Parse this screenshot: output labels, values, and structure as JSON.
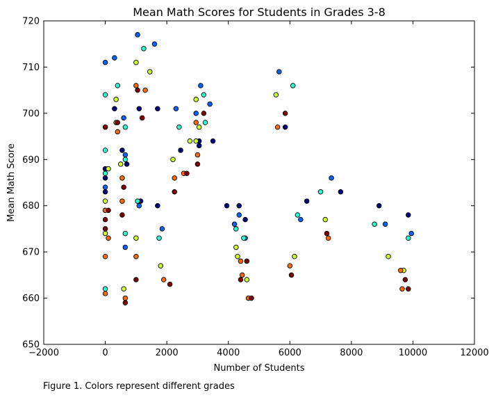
{
  "chart_data": {
    "type": "scatter",
    "title": "Mean Math Scores for Students in Grades 3-8",
    "xlabel": "Number of Students",
    "ylabel": "Mean Math Score",
    "xlim": [
      -2000,
      12000
    ],
    "ylim": [
      650,
      720
    ],
    "xticks": [
      -2000,
      0,
      2000,
      4000,
      6000,
      8000,
      10000,
      12000
    ],
    "yticks": [
      650,
      660,
      670,
      680,
      690,
      700,
      710,
      720
    ],
    "grid": false,
    "legend": "none",
    "marker_edge_color": "#000000",
    "series": [
      {
        "color": "#00007f",
        "points": [
          [
            300,
            701
          ],
          [
            550,
            692
          ],
          [
            0,
            686
          ],
          [
            700,
            689
          ],
          [
            1700,
            701
          ],
          [
            1100,
            701
          ],
          [
            2450,
            692
          ],
          [
            3050,
            693
          ],
          [
            3050,
            694
          ],
          [
            3500,
            694
          ],
          [
            1700,
            680
          ],
          [
            1150,
            681
          ],
          [
            0,
            683
          ],
          [
            3950,
            680
          ],
          [
            4350,
            680
          ],
          [
            4550,
            677
          ],
          [
            5850,
            697
          ],
          [
            6550,
            681
          ],
          [
            7650,
            683
          ],
          [
            8900,
            680
          ],
          [
            9850,
            678
          ],
          [
            0,
            688
          ]
        ]
      },
      {
        "color": "#0066ff",
        "points": [
          [
            1050,
            717
          ],
          [
            1600,
            715
          ],
          [
            300,
            712
          ],
          [
            0,
            711
          ],
          [
            3100,
            706
          ],
          [
            3400,
            702
          ],
          [
            2300,
            701
          ],
          [
            2950,
            700
          ],
          [
            600,
            699
          ],
          [
            650,
            691
          ],
          [
            0,
            684
          ],
          [
            0,
            679
          ],
          [
            1100,
            680
          ],
          [
            1850,
            675
          ],
          [
            650,
            671
          ],
          [
            4200,
            676
          ],
          [
            4350,
            678
          ],
          [
            4550,
            673
          ],
          [
            5650,
            709
          ],
          [
            6350,
            677
          ],
          [
            7350,
            686
          ],
          [
            9100,
            676
          ],
          [
            9950,
            674
          ]
        ]
      },
      {
        "color": "#26ffd0",
        "points": [
          [
            1250,
            714
          ],
          [
            400,
            706
          ],
          [
            0,
            704
          ],
          [
            3200,
            704
          ],
          [
            3250,
            698
          ],
          [
            2400,
            697
          ],
          [
            650,
            697
          ],
          [
            0,
            692
          ],
          [
            0,
            687
          ],
          [
            650,
            690
          ],
          [
            1050,
            681
          ],
          [
            650,
            674
          ],
          [
            1750,
            673
          ],
          [
            0,
            662
          ],
          [
            4250,
            675
          ],
          [
            4500,
            673
          ],
          [
            6100,
            706
          ],
          [
            6250,
            678
          ],
          [
            7000,
            683
          ],
          [
            8750,
            676
          ],
          [
            9850,
            673
          ]
        ]
      },
      {
        "color": "#ceff29",
        "points": [
          [
            1000,
            711
          ],
          [
            1450,
            709
          ],
          [
            350,
            703
          ],
          [
            2950,
            703
          ],
          [
            2750,
            694
          ],
          [
            2950,
            694
          ],
          [
            3050,
            697
          ],
          [
            2200,
            690
          ],
          [
            500,
            689
          ],
          [
            100,
            688
          ],
          [
            0,
            681
          ],
          [
            0,
            674
          ],
          [
            1000,
            673
          ],
          [
            1800,
            667
          ],
          [
            600,
            662
          ],
          [
            4250,
            671
          ],
          [
            4300,
            669
          ],
          [
            4600,
            664
          ],
          [
            5550,
            704
          ],
          [
            6150,
            669
          ],
          [
            7150,
            677
          ],
          [
            9200,
            669
          ],
          [
            9700,
            666
          ]
        ]
      },
      {
        "color": "#ff6a00",
        "points": [
          [
            1000,
            706
          ],
          [
            1300,
            705
          ],
          [
            350,
            698
          ],
          [
            400,
            696
          ],
          [
            0,
            697
          ],
          [
            2950,
            698
          ],
          [
            3000,
            691
          ],
          [
            2550,
            687
          ],
          [
            2250,
            686
          ],
          [
            550,
            686
          ],
          [
            550,
            681
          ],
          [
            0,
            679
          ],
          [
            100,
            673
          ],
          [
            1000,
            669
          ],
          [
            0,
            669
          ],
          [
            1900,
            664
          ],
          [
            0,
            661
          ],
          [
            650,
            660
          ],
          [
            4400,
            668
          ],
          [
            4450,
            665
          ],
          [
            4650,
            660
          ],
          [
            5600,
            697
          ],
          [
            6000,
            667
          ],
          [
            7250,
            673
          ],
          [
            9600,
            666
          ],
          [
            9650,
            662
          ]
        ]
      },
      {
        "color": "#7f0000",
        "points": [
          [
            1050,
            705
          ],
          [
            1200,
            699
          ],
          [
            400,
            698
          ],
          [
            0,
            697
          ],
          [
            3200,
            700
          ],
          [
            3000,
            689
          ],
          [
            2650,
            687
          ],
          [
            2250,
            683
          ],
          [
            600,
            684
          ],
          [
            550,
            678
          ],
          [
            100,
            679
          ],
          [
            0,
            677
          ],
          [
            0,
            675
          ],
          [
            1000,
            664
          ],
          [
            2100,
            663
          ],
          [
            650,
            659
          ],
          [
            4400,
            664
          ],
          [
            4600,
            668
          ],
          [
            4750,
            660
          ],
          [
            5850,
            700
          ],
          [
            6050,
            665
          ],
          [
            7200,
            674
          ],
          [
            9750,
            664
          ],
          [
            9850,
            662
          ]
        ]
      }
    ]
  },
  "caption": "Figure 1. Colors represent different grades"
}
